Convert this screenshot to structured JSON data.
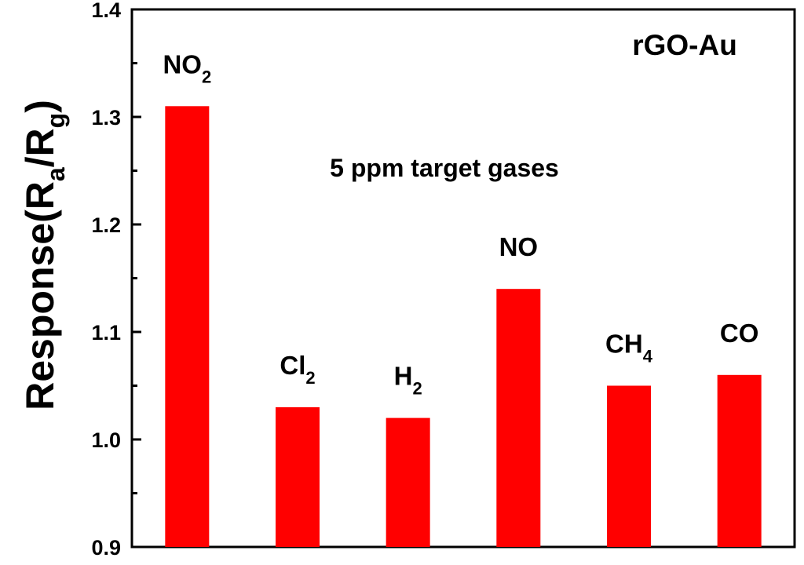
{
  "chart_data": {
    "type": "bar",
    "title": "",
    "legend_text": "rGO-Au",
    "annotation": "5 ppm target gases",
    "ylabel": {
      "parts": [
        {
          "text": "Response(R"
        },
        {
          "text": "a",
          "sub": true
        },
        {
          "text": "/R"
        },
        {
          "text": "g",
          "sub": true
        },
        {
          "text": ")"
        }
      ]
    },
    "xlabel": "",
    "ylim": [
      0.9,
      1.4
    ],
    "yticks": [
      "0.9",
      "1.0",
      "1.1",
      "1.2",
      "1.3",
      "1.4"
    ],
    "bar_color": "#ff0000",
    "bars": [
      {
        "label": "NO",
        "sub": "2",
        "value": 1.31
      },
      {
        "label": "Cl",
        "sub": "2",
        "value": 1.03
      },
      {
        "label": "H",
        "sub": "2",
        "value": 1.02
      },
      {
        "label": "NO",
        "sub": "",
        "value": 1.14
      },
      {
        "label": "CH",
        "sub": "4",
        "value": 1.05
      },
      {
        "label": "CO",
        "sub": "",
        "value": 1.06
      }
    ]
  }
}
